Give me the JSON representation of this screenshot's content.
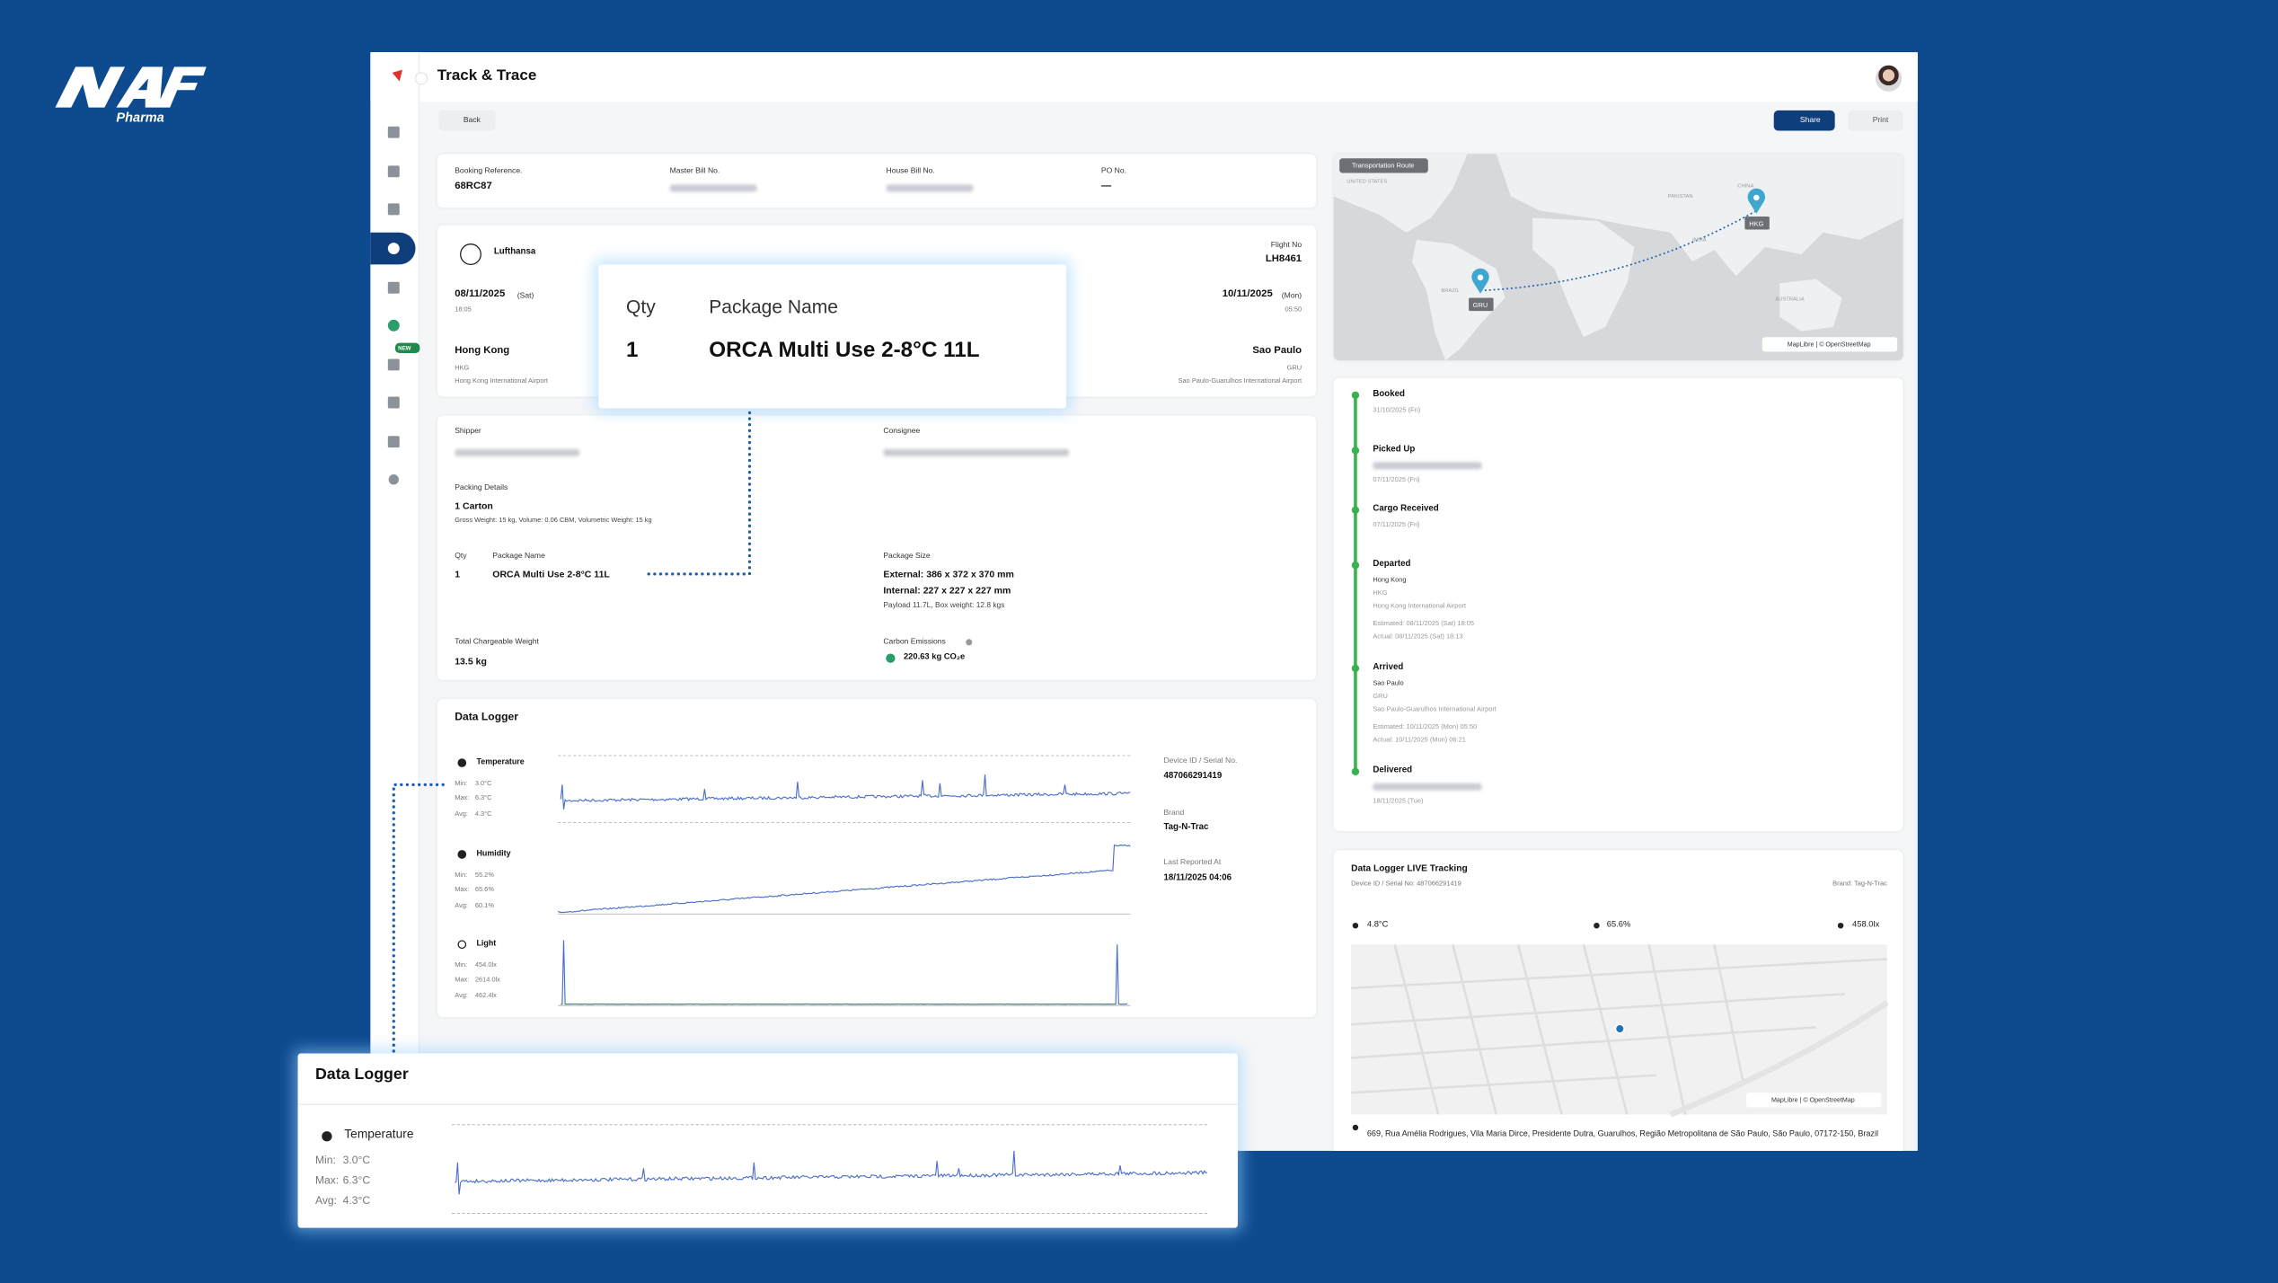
{
  "brand": {
    "name": "NAF",
    "sub": "Pharma"
  },
  "header": {
    "title": "Track & Trace",
    "back": "Back",
    "share": "Share",
    "print": "Print",
    "new_badge": "NEW"
  },
  "booking": [
    {
      "label": "Booking Reference.",
      "value": "68RC87"
    },
    {
      "label": "Master Bill No."
    },
    {
      "label": "House Bill No."
    },
    {
      "label": "PO No.",
      "value": "—"
    }
  ],
  "flight": {
    "airline": "Lufthansa",
    "flight_label": "Flight No",
    "flight_no": "LH8461",
    "departure": {
      "date": "08/11/2025",
      "day": "(Sat)",
      "time": "18:05",
      "city": "Hong Kong",
      "code": "HKG",
      "airport": "Hong Kong International Airport"
    },
    "arrival": {
      "date": "10/11/2025",
      "day": "(Mon)",
      "time": "05:50",
      "city": "Sao Paulo",
      "code": "GRU",
      "airport": "Sao Paulo-Guarulhos International Airport"
    }
  },
  "details": {
    "shipper_label": "Shipper",
    "consignee_label": "Consignee",
    "packing_label": "Packing Details",
    "packing_value": "1 Carton",
    "packing_note": "Gross Weight: 15 kg, Volume: 0.06 CBM, Volumetric Weight: 15 kg",
    "qty_label": "Qty",
    "package_label": "Package Name",
    "qty": "1",
    "package": "ORCA Multi Use 2-8°C 11L",
    "size_label": "Package Size",
    "external": "External: 386 x 372 x 370 mm",
    "internal": "Internal: 227 x 227 x 227 mm",
    "payload": "Payload 11.7L, Box weight: 12.8 kgs",
    "weight_label": "Total Chargeable Weight",
    "weight": "13.5 kg",
    "carbon_label": "Carbon Emissions",
    "carbon": "220.63 kg CO₂e"
  },
  "logger": {
    "title": "Data Logger",
    "stat_labels": [
      "Min:",
      "Max:",
      "Avg:"
    ],
    "sensors": [
      {
        "name": "Temperature",
        "stats": [
          "3.0°C",
          "6.3°C",
          "4.3°C"
        ]
      },
      {
        "name": "Humidity",
        "stats": [
          "55.2%",
          "65.6%",
          "60.1%"
        ]
      },
      {
        "name": "Light",
        "stats": [
          "454.0lx",
          "2614.0lx",
          "462.4lx"
        ]
      }
    ],
    "device_label": "Device ID / Serial No.",
    "device": "487066291419",
    "brand_label": "Brand",
    "brand": "Tag-N-Trac",
    "reported_label": "Last Reported At",
    "reported": "18/11/2025 04:06"
  },
  "route_map": {
    "label": "Transportation Route",
    "attribution": "MapLibre | © OpenStreetMap",
    "origin": "HKG",
    "destination": "GRU",
    "places": [
      "UNITED STATES",
      "PAKISTAN",
      "CHINA",
      "INDIA",
      "BRAZIL",
      "AUSTRALIA"
    ]
  },
  "timeline": [
    {
      "status": "Booked",
      "lines": [
        "31/10/2025 (Fri)"
      ]
    },
    {
      "status": "Picked Up",
      "lines": [
        "07/11/2025 (Fri)"
      ]
    },
    {
      "status": "Cargo Received",
      "lines": [
        "07/11/2025 (Fri)"
      ]
    },
    {
      "status": "Departed",
      "lines": [
        "Hong Kong",
        "HKG",
        "Hong Kong International Airport"
      ],
      "times": [
        "Estimated: 08/11/2025 (Sat) 18:05",
        "Actual: 08/11/2025 (Sat) 18:13"
      ]
    },
    {
      "status": "Arrived",
      "lines": [
        "Sao Paulo",
        "GRU",
        "Sao Paulo-Guarulhos International Airport"
      ],
      "times": [
        "Estimated: 10/11/2025 (Mon) 05:50",
        "Actual: 10/11/2025 (Mon) 06:21"
      ]
    },
    {
      "status": "Delivered",
      "lines": [
        "18/11/2025 (Tue)"
      ]
    }
  ],
  "live": {
    "title": "Data Logger LIVE Tracking",
    "device": "Device ID / Serial No: 487066291419",
    "brand": "Brand: Tag-N-Trac",
    "temperature": "4.8°C",
    "humidity": "65.6%",
    "light": "458.0lx",
    "attribution": "MapLibre | © OpenStreetMap",
    "address": "669, Rua Amélia Rodrigues, Vila Maria Dirce, Presidente Dutra, Guarulhos, Região Metropolitana de São Paulo, São Paulo, 07172-150, Brazil"
  }
}
